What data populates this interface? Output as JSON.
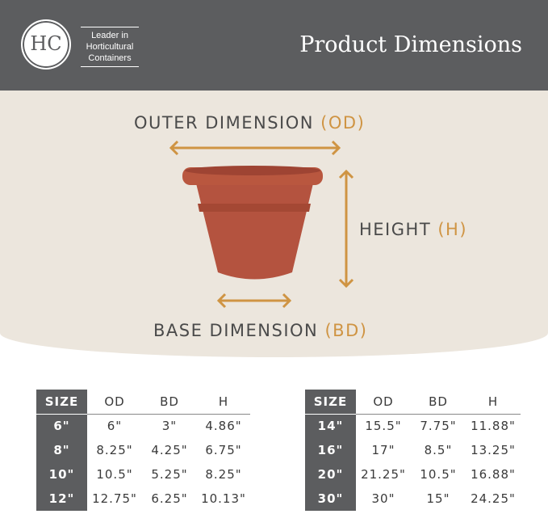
{
  "header": {
    "logo": "HC",
    "tagline": [
      "Leader in",
      "Horticultural",
      "Containers"
    ],
    "title": "Product Dimensions"
  },
  "diagram": {
    "outer": "OUTER DIMENSION",
    "outer_abbr": "(OD)",
    "height": "HEIGHT",
    "height_abbr": "(H)",
    "base": "BASE DIMENSION",
    "base_abbr": "(BD)",
    "pot_color": "#b4533f",
    "accent": "#cf9443"
  },
  "tables": [
    {
      "headers": [
        "SIZE",
        "OD",
        "BD",
        "H"
      ],
      "rows": [
        [
          "6\"",
          "6\"",
          "3\"",
          "4.86\""
        ],
        [
          "8\"",
          "8.25\"",
          "4.25\"",
          "6.75\""
        ],
        [
          "10\"",
          "10.5\"",
          "5.25\"",
          "8.25\""
        ],
        [
          "12\"",
          "12.75\"",
          "6.25\"",
          "10.13\""
        ]
      ]
    },
    {
      "headers": [
        "SIZE",
        "OD",
        "BD",
        "H"
      ],
      "rows": [
        [
          "14\"",
          "15.5\"",
          "7.75\"",
          "11.88\""
        ],
        [
          "16\"",
          "17\"",
          "8.5\"",
          "13.25\""
        ],
        [
          "20\"",
          "21.25\"",
          "10.5\"",
          "16.88\""
        ],
        [
          "30\"",
          "30\"",
          "15\"",
          "24.25\""
        ]
      ]
    }
  ]
}
